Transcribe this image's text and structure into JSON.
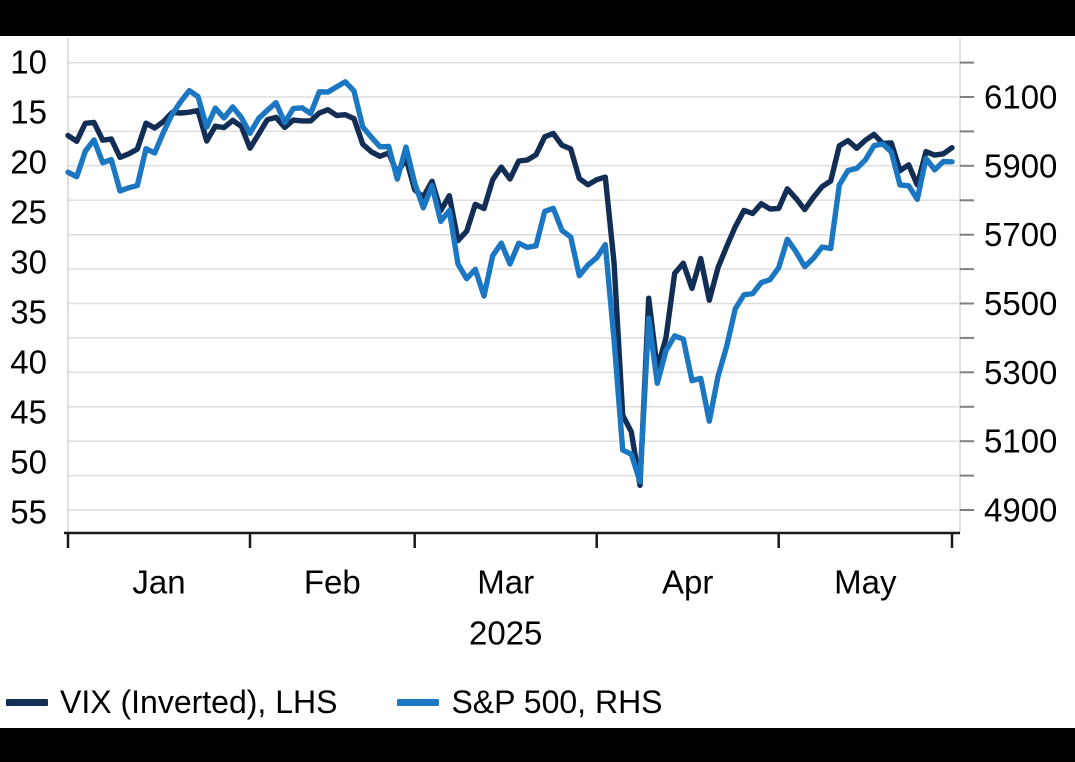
{
  "chart_data": {
    "type": "line",
    "title": "",
    "x_label": "2025",
    "x": [
      "2024-12-31",
      "2025-01-02",
      "2025-01-03",
      "2025-01-06",
      "2025-01-07",
      "2025-01-08",
      "2025-01-10",
      "2025-01-13",
      "2025-01-14",
      "2025-01-15",
      "2025-01-16",
      "2025-01-17",
      "2025-01-21",
      "2025-01-22",
      "2025-01-23",
      "2025-01-24",
      "2025-01-27",
      "2025-01-28",
      "2025-01-29",
      "2025-01-30",
      "2025-01-31",
      "2025-02-03",
      "2025-02-04",
      "2025-02-05",
      "2025-02-06",
      "2025-02-07",
      "2025-02-10",
      "2025-02-11",
      "2025-02-12",
      "2025-02-13",
      "2025-02-14",
      "2025-02-18",
      "2025-02-19",
      "2025-02-20",
      "2025-02-21",
      "2025-02-24",
      "2025-02-25",
      "2025-02-26",
      "2025-02-27",
      "2025-02-28",
      "2025-03-03",
      "2025-03-04",
      "2025-03-05",
      "2025-03-06",
      "2025-03-07",
      "2025-03-10",
      "2025-03-11",
      "2025-03-12",
      "2025-03-13",
      "2025-03-14",
      "2025-03-17",
      "2025-03-18",
      "2025-03-19",
      "2025-03-20",
      "2025-03-21",
      "2025-03-24",
      "2025-03-25",
      "2025-03-26",
      "2025-03-27",
      "2025-03-28",
      "2025-03-31",
      "2025-04-01",
      "2025-04-02",
      "2025-04-03",
      "2025-04-04",
      "2025-04-07",
      "2025-04-08",
      "2025-04-09",
      "2025-04-10",
      "2025-04-11",
      "2025-04-14",
      "2025-04-15",
      "2025-04-16",
      "2025-04-17",
      "2025-04-21",
      "2025-04-22",
      "2025-04-23",
      "2025-04-24",
      "2025-04-25",
      "2025-04-28",
      "2025-04-29",
      "2025-04-30",
      "2025-05-01",
      "2025-05-02",
      "2025-05-05",
      "2025-05-06",
      "2025-05-07",
      "2025-05-08",
      "2025-05-09",
      "2025-05-12",
      "2025-05-13",
      "2025-05-14",
      "2025-05-15",
      "2025-05-16",
      "2025-05-19",
      "2025-05-20",
      "2025-05-21",
      "2025-05-22",
      "2025-05-23",
      "2025-05-27",
      "2025-05-28",
      "2025-05-29",
      "2025-05-30"
    ],
    "series": [
      {
        "name": "VIX (Inverted), LHS",
        "axis": "left",
        "color": "#122e54",
        "values": [
          17.35,
          17.93,
          16.13,
          16.04,
          17.82,
          17.7,
          19.54,
          19.19,
          18.71,
          16.12,
          16.6,
          15.97,
          15.06,
          15.1,
          15.02,
          14.85,
          17.9,
          16.41,
          16.56,
          15.84,
          16.43,
          18.62,
          17.21,
          15.77,
          15.54,
          16.54,
          15.81,
          15.89,
          15.89,
          15.1,
          14.77,
          15.35,
          15.27,
          15.66,
          18.21,
          18.98,
          19.43,
          19.1,
          21.13,
          19.63,
          22.78,
          23.51,
          21.93,
          24.87,
          23.37,
          27.86,
          26.92,
          24.23,
          24.66,
          21.77,
          20.51,
          21.7,
          19.9,
          19.8,
          19.28,
          17.48,
          17.15,
          18.33,
          18.69,
          21.65,
          22.28,
          21.77,
          21.51,
          30.02,
          45.31,
          46.98,
          52.33,
          33.62,
          40.72,
          37.56,
          31.12,
          30.12,
          32.64,
          29.65,
          33.82,
          30.57,
          28.45,
          26.47,
          24.84,
          25.15,
          24.17,
          24.7,
          24.64,
          22.68,
          23.64,
          24.76,
          23.55,
          22.48,
          21.9,
          18.38,
          17.86,
          18.62,
          17.83,
          17.24,
          18.14,
          18.09,
          20.87,
          20.28,
          22.29,
          18.96,
          19.31,
          19.18,
          18.57
        ]
      },
      {
        "name": "S&P 500, RHS",
        "axis": "right",
        "color": "#1b77c1",
        "values": [
          5881.63,
          5868.55,
          5942.47,
          5975.38,
          5909.03,
          5918.25,
          5827.04,
          5836.22,
          5842.91,
          5949.91,
          5937.34,
          5996.66,
          6049.24,
          6086.37,
          6118.71,
          6101.24,
          6012.28,
          6067.7,
          6039.31,
          6071.17,
          6040.53,
          5994.57,
          6037.88,
          6061.48,
          6083.57,
          6025.99,
          6066.44,
          6068.5,
          6051.97,
          6115.07,
          6114.63,
          6129.58,
          6144.15,
          6117.52,
          6013.13,
          5983.25,
          5955.25,
          5956.06,
          5861.57,
          5954.5,
          5849.72,
          5778.15,
          5842.63,
          5738.52,
          5770.2,
          5614.56,
          5572.07,
          5599.3,
          5521.52,
          5638.94,
          5675.12,
          5614.66,
          5675.29,
          5662.89,
          5667.56,
          5767.57,
          5776.65,
          5712.2,
          5693.31,
          5580.94,
          5611.85,
          5633.07,
          5670.97,
          5396.52,
          5074.08,
          5062.25,
          4982.77,
          5456.9,
          5268.05,
          5363.36,
          5405.97,
          5396.63,
          5275.7,
          5282.7,
          5158.2,
          5287.76,
          5375.86,
          5484.77,
          5525.21,
          5528.75,
          5560.83,
          5569.06,
          5604.14,
          5686.67,
          5650.38,
          5606.91,
          5631.28,
          5663.94,
          5659.91,
          5844.19,
          5886.55,
          5892.58,
          5916.93,
          5958.38,
          5963.6,
          5940.46,
          5844.61,
          5842.01,
          5802.82,
          5921.54,
          5888.55,
          5912.17,
          5911.69
        ]
      }
    ],
    "left_axis": {
      "inverted": true,
      "min": 10,
      "max": 55,
      "tick_labels": [
        10,
        15,
        20,
        25,
        30,
        35,
        40,
        45,
        50,
        55
      ]
    },
    "right_axis": {
      "min": 4900,
      "max": 6200,
      "tick_labels": [
        6100,
        5900,
        5700,
        5500,
        5300,
        5100,
        4900
      ],
      "gridline_step": 100,
      "gridline_top": 6200,
      "gridline_bottom": 4900
    },
    "x_axis": {
      "month_labels": [
        "Jan",
        "Feb",
        "Mar",
        "Apr",
        "May"
      ],
      "year_label": "2025",
      "tick_indices": [
        0,
        21,
        40,
        61,
        82,
        102
      ]
    },
    "grid": "horizontal",
    "legend_position": "bottom"
  },
  "legend": {
    "vix_label": "VIX (Inverted), LHS",
    "sp500_label": "S&P 500, RHS"
  },
  "colors": {
    "vix_line": "#122e54",
    "sp500_line": "#1b77c1",
    "gridline": "#dedede",
    "plot_border": "#d6d6d6",
    "x_axis_line": "#1a1a1a",
    "right_tick": "#7f7f7f",
    "label_text": "#000000",
    "frame_bar": "#000000"
  }
}
